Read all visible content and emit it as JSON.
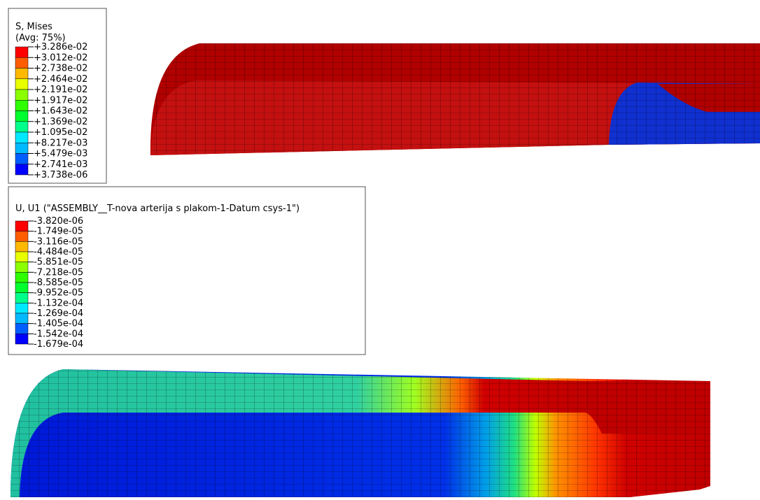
{
  "legends": [
    {
      "title": [
        "S, Mises",
        "(Avg: 75%)"
      ],
      "labels": [
        "+3.286e-02",
        "+3.012e-02",
        "+2.738e-02",
        "+2.464e-02",
        "+2.191e-02",
        "+1.917e-02",
        "+1.643e-02",
        "+1.369e-02",
        "+1.095e-02",
        "+8.217e-03",
        "+5.479e-03",
        "+2.741e-03",
        "+3.738e-06"
      ]
    },
    {
      "title": [
        "U, U1 (\"ASSEMBLY__T-nova arterija s plakom-1-Datum csys-1\")"
      ],
      "labels": [
        "-3.820e-06",
        "-1.749e-05",
        "-3.116e-05",
        "-4.484e-05",
        "-5.851e-05",
        "-7.218e-05",
        "-8.585e-05",
        "-9.952e-05",
        "-1.132e-04",
        "-1.269e-04",
        "-1.405e-04",
        "-1.542e-04",
        "-1.679e-04"
      ]
    }
  ],
  "colors": [
    "#ff0000",
    "#ff5d00",
    "#ffb900",
    "#e8ff00",
    "#8bff00",
    "#2eff00",
    "#00ff2e",
    "#00ff8b",
    "#00e8ff",
    "#00b9ff",
    "#005dff",
    "#0000ff"
  ]
}
